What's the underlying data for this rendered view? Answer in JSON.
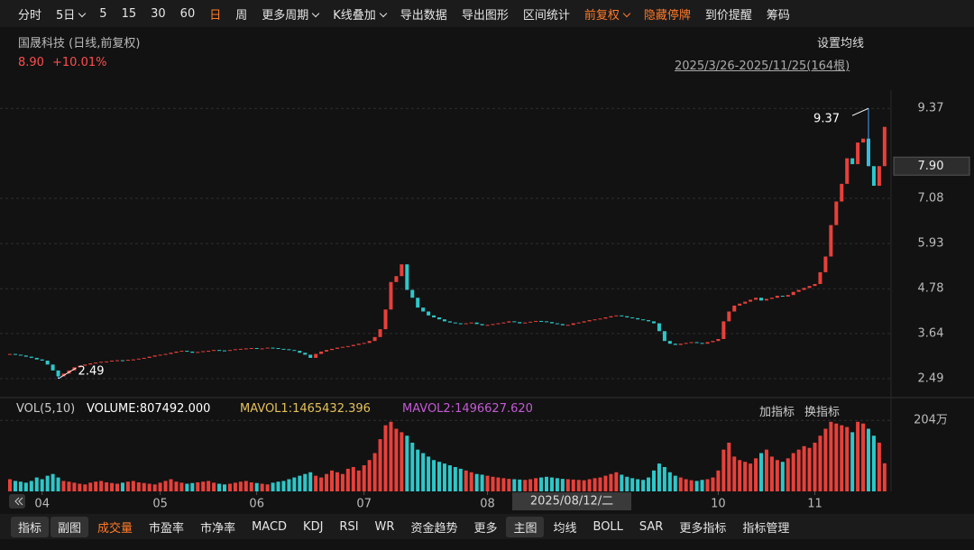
{
  "toolbar": {
    "items": [
      {
        "text": "分时"
      },
      {
        "text": "5日",
        "menu": true
      },
      {
        "text": "5"
      },
      {
        "text": "15"
      },
      {
        "text": "30"
      },
      {
        "text": "60"
      },
      {
        "text": "日",
        "active": true
      },
      {
        "text": "周"
      },
      {
        "text": "更多周期",
        "menu": true
      },
      {
        "text": "K线叠加",
        "menu": true
      },
      {
        "text": "导出数据"
      },
      {
        "text": "导出图形"
      },
      {
        "text": "区间统计"
      },
      {
        "text": "前复权",
        "menu": true,
        "active": true
      },
      {
        "text": "隐藏停牌",
        "active": true
      },
      {
        "text": "到价提醒"
      },
      {
        "text": "筹码"
      }
    ]
  },
  "header": {
    "name": "国晟科技 (日线,前复权)",
    "price": "8.90",
    "change": "+10.01%",
    "ma_setting": "设置均线",
    "range": "2025/3/26-2025/11/25(164根)"
  },
  "volume_header": {
    "title": "VOL(5,10)",
    "volume": "VOLUME:807492.000",
    "mavol1": "MAVOL1:1465432.396",
    "mavol2": "MAVOL2:1496627.620",
    "add": "加指标",
    "swap": "换指标"
  },
  "chart_data": {
    "type": "candlestick",
    "close": [
      3.12,
      3.1,
      3.08,
      3.05,
      3.02,
      2.98,
      2.95,
      2.85,
      2.7,
      2.55,
      2.62,
      2.7,
      2.78,
      2.82,
      2.85,
      2.88,
      2.9,
      2.92,
      2.93,
      2.95,
      2.96,
      2.95,
      2.97,
      2.98,
      3.0,
      3.02,
      3.05,
      3.08,
      3.1,
      3.12,
      3.15,
      3.18,
      3.2,
      3.18,
      3.15,
      3.17,
      3.19,
      3.2,
      3.22,
      3.21,
      3.2,
      3.22,
      3.24,
      3.25,
      3.26,
      3.27,
      3.25,
      3.26,
      3.28,
      3.27,
      3.25,
      3.24,
      3.22,
      3.2,
      3.15,
      3.1,
      3.02,
      3.12,
      3.18,
      3.22,
      3.25,
      3.28,
      3.3,
      3.32,
      3.35,
      3.38,
      3.4,
      3.45,
      3.55,
      3.75,
      4.25,
      4.95,
      5.1,
      5.4,
      4.75,
      4.55,
      4.3,
      4.2,
      4.1,
      4.05,
      4.0,
      3.95,
      3.92,
      3.9,
      3.88,
      3.9,
      3.92,
      3.88,
      3.85,
      3.86,
      3.88,
      3.9,
      3.92,
      3.95,
      3.93,
      3.9,
      3.92,
      3.94,
      3.96,
      3.95,
      3.93,
      3.9,
      3.88,
      3.85,
      3.86,
      3.9,
      3.92,
      3.95,
      3.98,
      4.0,
      4.02,
      4.05,
      4.08,
      4.1,
      4.08,
      4.05,
      4.03,
      4.0,
      3.98,
      3.95,
      3.9,
      3.7,
      3.45,
      3.38,
      3.35,
      3.38,
      3.4,
      3.42,
      3.4,
      3.38,
      3.42,
      3.45,
      3.5,
      3.95,
      4.2,
      4.35,
      4.4,
      4.45,
      4.5,
      4.55,
      4.48,
      4.52,
      4.55,
      4.6,
      4.58,
      4.62,
      4.7,
      4.75,
      4.8,
      4.85,
      4.9,
      5.2,
      5.6,
      6.4,
      7.0,
      7.45,
      8.1,
      7.95,
      8.5,
      8.6,
      7.9,
      7.4,
      7.9,
      8.9
    ],
    "volume": [
      35,
      30,
      28,
      25,
      30,
      40,
      35,
      45,
      50,
      40,
      30,
      28,
      25,
      22,
      20,
      25,
      28,
      30,
      26,
      24,
      22,
      25,
      28,
      30,
      26,
      24,
      22,
      20,
      25,
      30,
      35,
      28,
      25,
      22,
      24,
      26,
      28,
      30,
      25,
      22,
      20,
      22,
      25,
      28,
      30,
      26,
      24,
      22,
      20,
      25,
      28,
      30,
      35,
      40,
      45,
      50,
      55,
      45,
      40,
      50,
      60,
      55,
      50,
      65,
      70,
      60,
      75,
      90,
      110,
      150,
      190,
      200,
      180,
      170,
      160,
      140,
      120,
      110,
      100,
      90,
      85,
      80,
      75,
      70,
      65,
      60,
      55,
      50,
      48,
      45,
      42,
      40,
      38,
      36,
      35,
      34,
      33,
      35,
      38,
      40,
      42,
      40,
      38,
      36,
      35,
      34,
      33,
      32,
      35,
      38,
      40,
      45,
      50,
      55,
      48,
      42,
      38,
      35,
      33,
      40,
      60,
      80,
      70,
      55,
      45,
      40,
      35,
      32,
      30,
      33,
      35,
      40,
      60,
      120,
      140,
      100,
      90,
      85,
      80,
      95,
      110,
      120,
      100,
      90,
      85,
      95,
      110,
      120,
      130,
      125,
      140,
      160,
      180,
      200,
      195,
      190,
      185,
      170,
      200,
      195,
      180,
      160,
      140,
      80.75
    ],
    "ylim": [
      2.1,
      9.65
    ],
    "yticks": [
      2.49,
      3.64,
      4.78,
      5.93,
      7.08,
      9.37
    ],
    "vol_ylim": [
      0,
      215
    ],
    "vol_yticks": [
      {
        "value": 204,
        "label": "204万"
      }
    ],
    "xticks": [
      {
        "value": 6,
        "label": "04"
      },
      {
        "value": 28,
        "label": "05"
      },
      {
        "value": 46,
        "label": "06"
      },
      {
        "value": 66,
        "label": "07"
      },
      {
        "value": 89,
        "label": "08"
      },
      {
        "value": 132,
        "label": "10"
      },
      {
        "value": 150,
        "label": "11"
      }
    ],
    "crosshair_price": {
      "value": 7.9,
      "label": "7.90"
    },
    "crosshair_date": "2025/08/12/二",
    "annotations": [
      {
        "index": 9,
        "value": 2.49
      },
      {
        "index": 160,
        "value": 9.37
      }
    ],
    "up_color": "#e8403a",
    "down_color": "#2ec7c9",
    "grid": true
  },
  "bottom_tabs": {
    "items": [
      {
        "text": "指标",
        "boxed": true
      },
      {
        "text": "副图",
        "boxed": true
      },
      {
        "text": "成交量",
        "active": true
      },
      {
        "text": "市盈率"
      },
      {
        "text": "市净率"
      },
      {
        "text": "MACD"
      },
      {
        "text": "KDJ"
      },
      {
        "text": "RSI"
      },
      {
        "text": "WR"
      },
      {
        "text": "资金趋势"
      },
      {
        "text": "更多"
      },
      {
        "text": "主图",
        "boxed": true
      },
      {
        "text": "均线"
      },
      {
        "text": "BOLL"
      },
      {
        "text": "SAR"
      },
      {
        "text": "更多指标"
      },
      {
        "text": "指标管理"
      }
    ]
  }
}
